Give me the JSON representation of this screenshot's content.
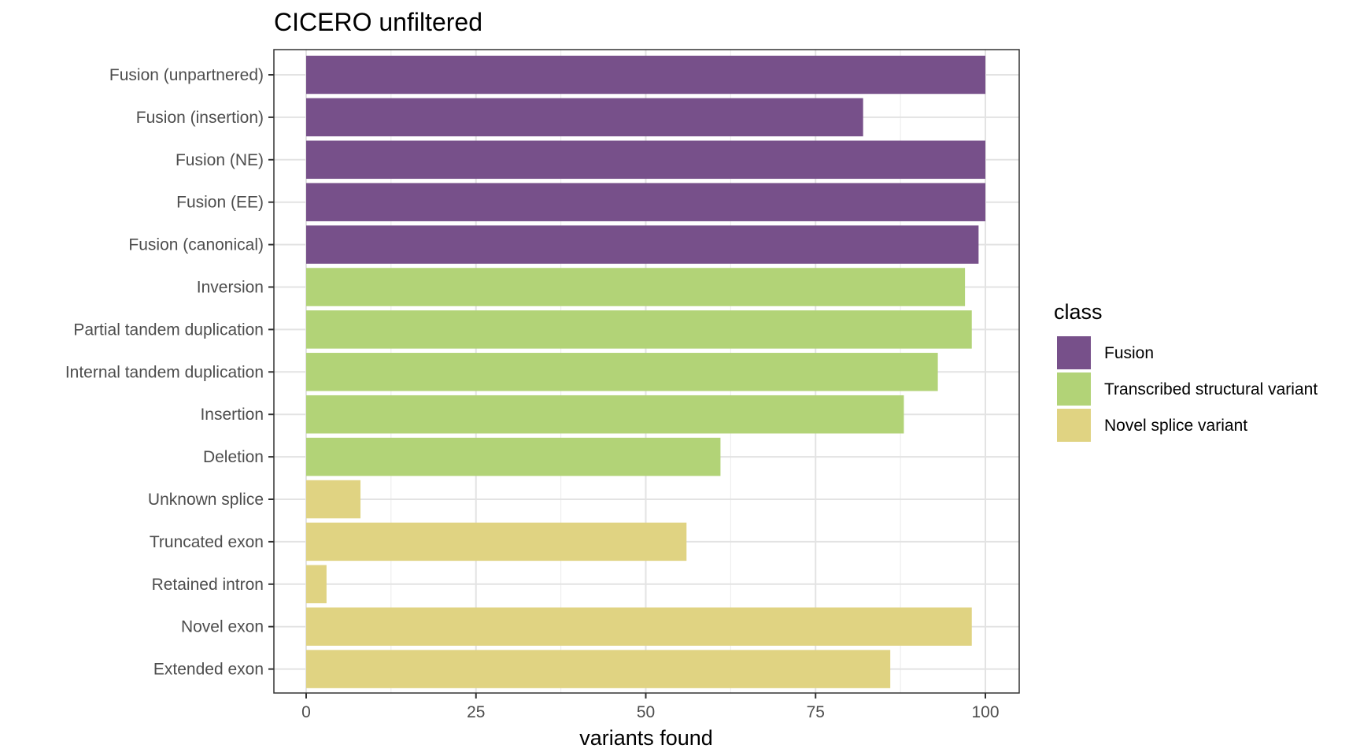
{
  "chart_data": {
    "type": "bar",
    "orientation": "horizontal",
    "title": "CICERO unfiltered",
    "xlabel": "variants found",
    "ylabel": "",
    "xlim": [
      0,
      100
    ],
    "xticks": [
      0,
      25,
      50,
      75,
      100
    ],
    "grid": true,
    "categories": [
      "Fusion (unpartnered)",
      "Fusion (insertion)",
      "Fusion (NE)",
      "Fusion (EE)",
      "Fusion (canonical)",
      "Inversion",
      "Partial tandem duplication",
      "Internal tandem duplication",
      "Insertion",
      "Deletion",
      "Unknown splice",
      "Truncated exon",
      "Retained intron",
      "Novel exon",
      "Extended exon"
    ],
    "values": [
      100,
      82,
      100,
      100,
      99,
      97,
      98,
      93,
      88,
      61,
      8,
      56,
      3,
      98,
      86
    ],
    "classes": [
      "Fusion",
      "Fusion",
      "Fusion",
      "Fusion",
      "Fusion",
      "Transcribed structural variant",
      "Transcribed structural variant",
      "Transcribed structural variant",
      "Transcribed structural variant",
      "Transcribed structural variant",
      "Novel splice variant",
      "Novel splice variant",
      "Novel splice variant",
      "Novel splice variant",
      "Novel splice variant"
    ],
    "legend": {
      "title": "class",
      "position": "right",
      "entries": [
        {
          "name": "Fusion",
          "color": "#77508a"
        },
        {
          "name": "Transcribed structural variant",
          "color": "#b2d377"
        },
        {
          "name": "Novel splice variant",
          "color": "#e0d382"
        }
      ]
    }
  }
}
